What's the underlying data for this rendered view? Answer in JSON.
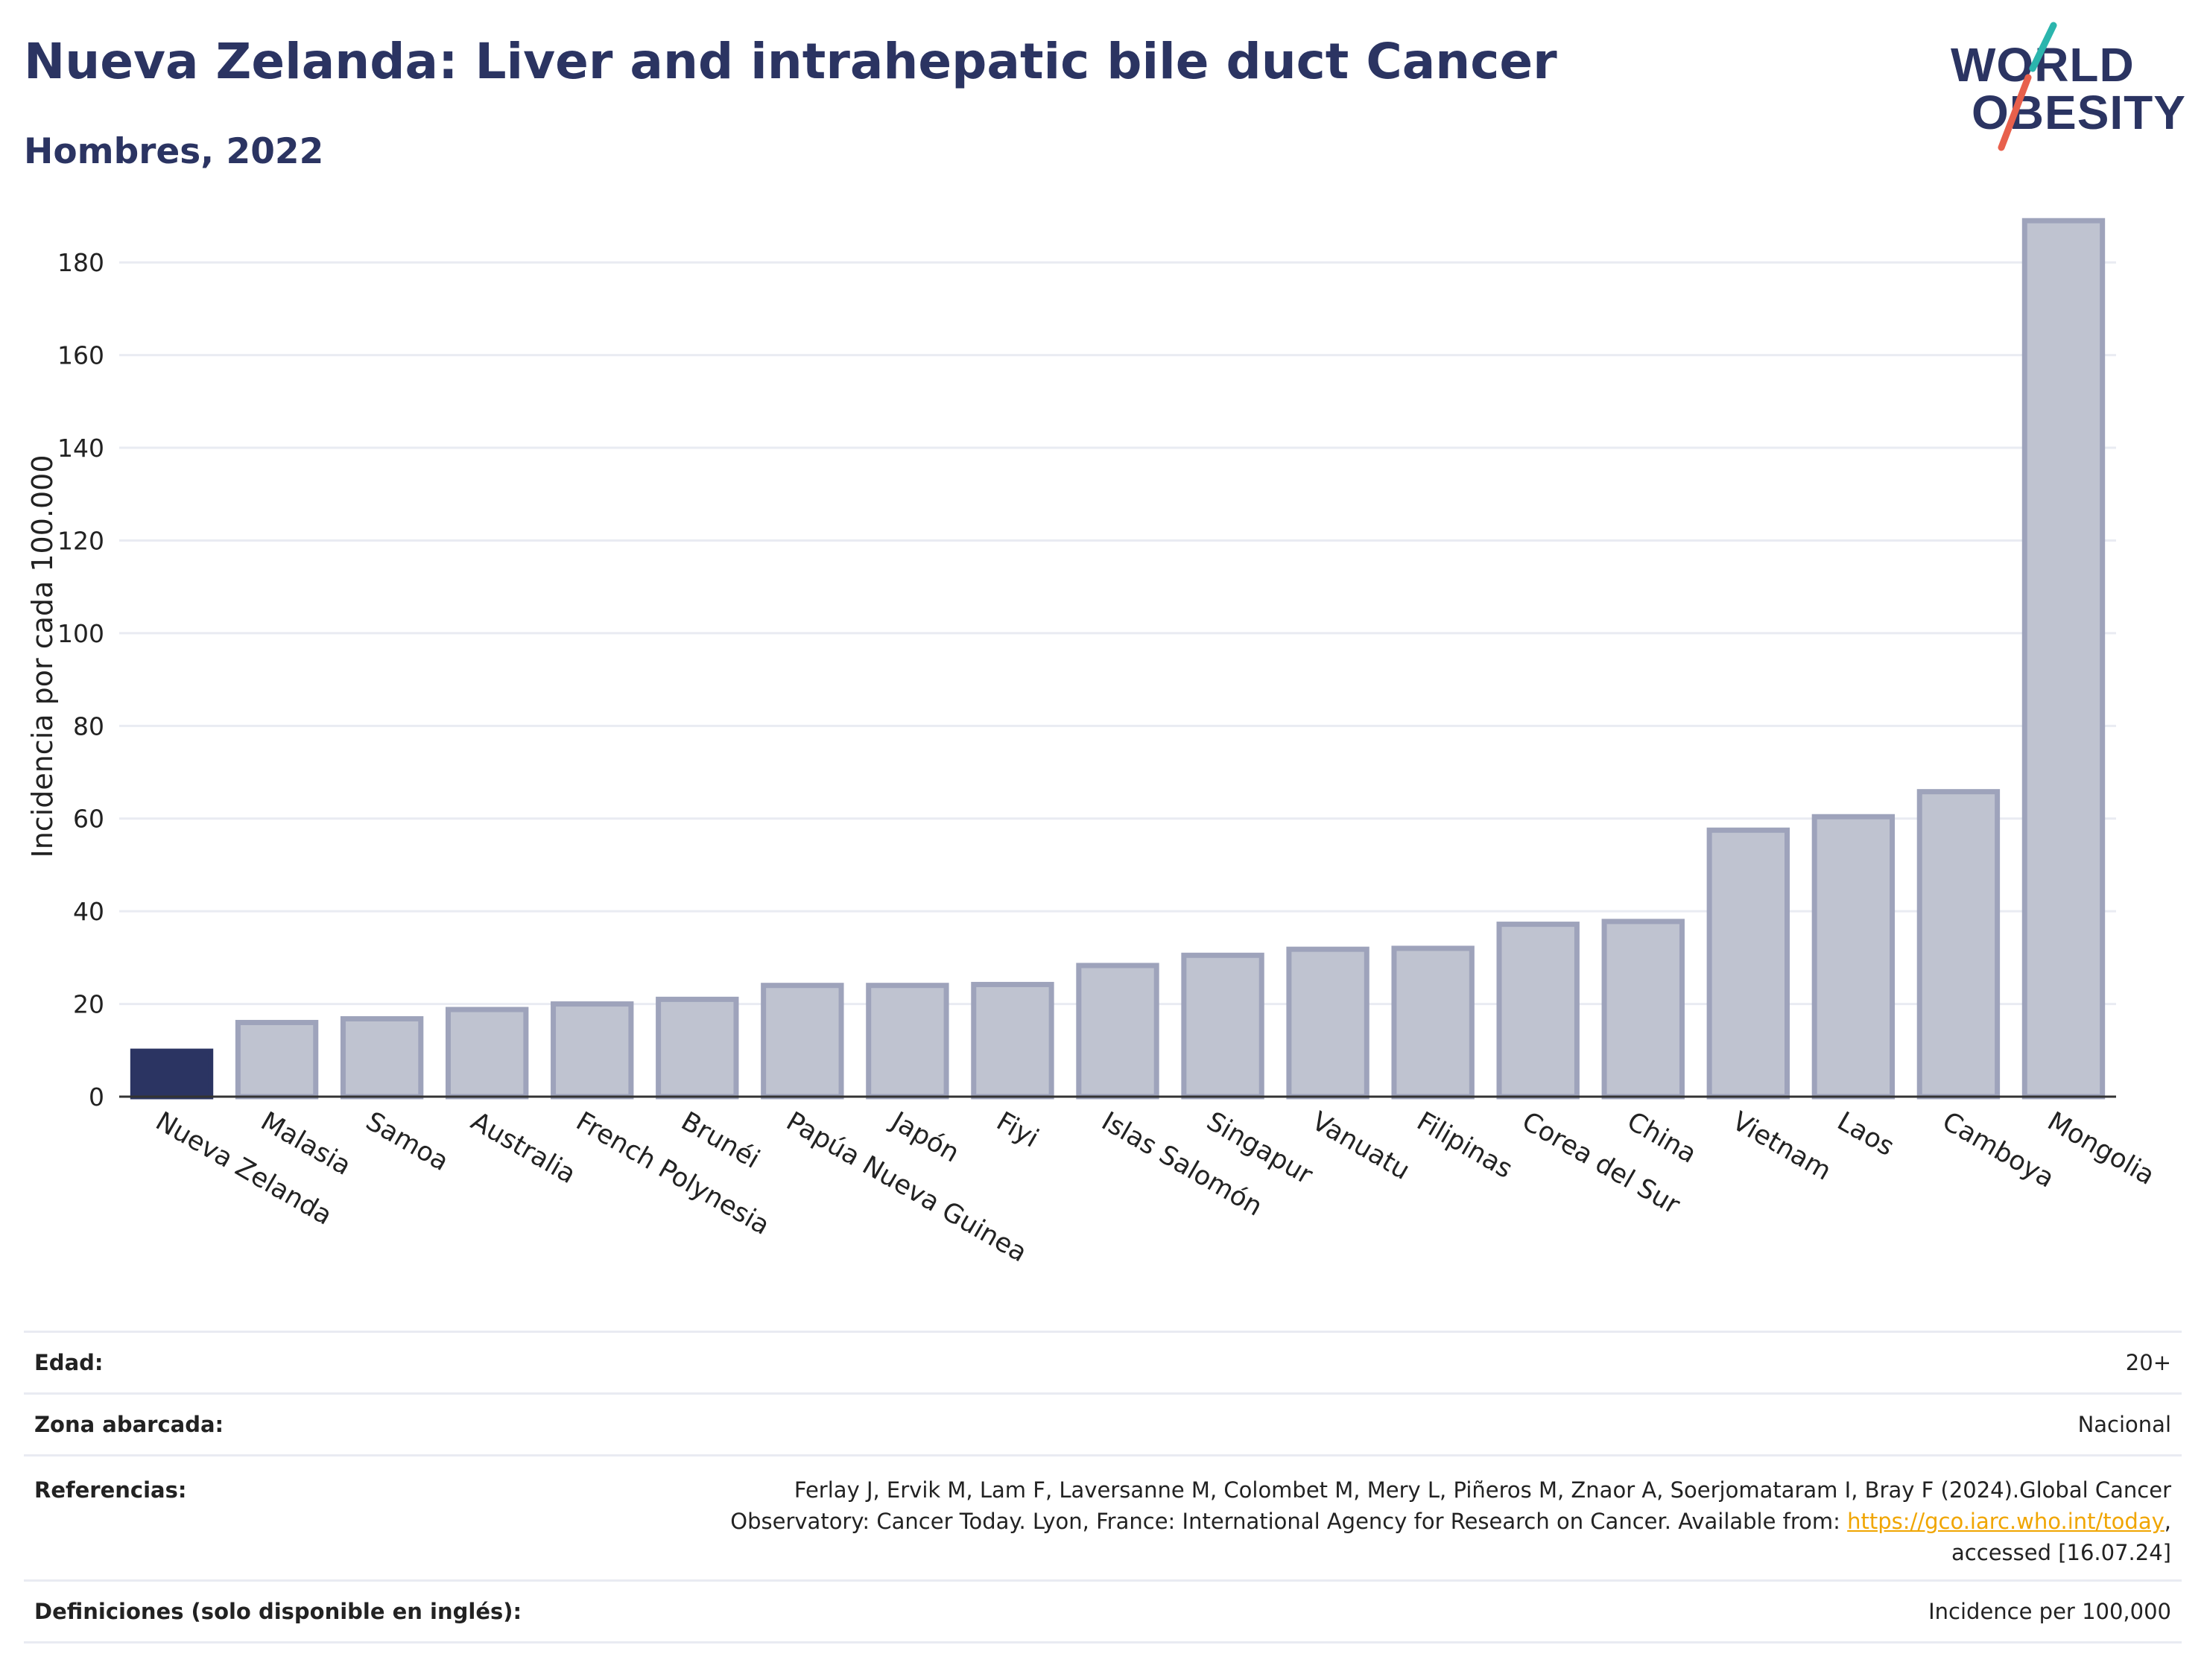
{
  "header": {
    "title": "Nueva Zelanda: Liver and intrahepatic bile duct Cancer",
    "subtitle": "Hombres, 2022"
  },
  "logo": {
    "line1": "WORLD",
    "line2": "OBESITY",
    "colors": {
      "text": "#2b3462",
      "slash_top": "#2bb5ad",
      "slash_bottom": "#e8604c"
    }
  },
  "chart_data": {
    "type": "bar",
    "title": "",
    "xlabel": "",
    "ylabel": "Incidencia por cada 100.000",
    "ylim": [
      0,
      190
    ],
    "yticks": [
      0,
      20,
      40,
      60,
      80,
      100,
      120,
      140,
      160,
      180
    ],
    "grid": true,
    "highlight": "Nueva Zelanda",
    "colors": {
      "highlight": "#2b3462",
      "bar_fill": "#bfc3d0",
      "bar_edge": "#9ea3bb"
    },
    "categories": [
      "Nueva Zelanda",
      "Malasia",
      "Samoa",
      "Australia",
      "French Polynesia",
      "Brunéi",
      "Papúa Nueva Guinea",
      "Japón",
      "Fiyi",
      "Islas Salomón",
      "Singapur",
      "Vanuatu",
      "Filipinas",
      "Corea del Sur",
      "China",
      "Vietnam",
      "Laos",
      "Camboya",
      "Mongolia"
    ],
    "values": [
      9.8,
      16.0,
      16.8,
      18.8,
      20.0,
      21.0,
      24.0,
      24.0,
      24.2,
      28.3,
      30.5,
      31.8,
      32.0,
      37.2,
      37.8,
      57.5,
      60.4,
      65.8,
      189.0
    ]
  },
  "info": {
    "age_label": "Edad:",
    "age_value": "20+",
    "area_label": "Zona abarcada:",
    "area_value": "Nacional",
    "refs_label": "Referencias:",
    "refs_line1": "Ferlay J, Ervik M, Lam F, Laversanne M, Colombet M, Mery L, Piñeros M, Znaor A, Soerjomataram I, Bray F (2024).Global Cancer",
    "refs_line2_pre": "Observatory: Cancer Today. Lyon, France: International Agency for Research on Cancer. Available from: ",
    "refs_link": "https://gco.iarc.who.int/today",
    "refs_line2_post": ",",
    "refs_line3": "accessed [16.07.24]",
    "defs_label": "Definiciones (solo disponible en inglés):",
    "defs_value": "Incidence per 100,000"
  }
}
